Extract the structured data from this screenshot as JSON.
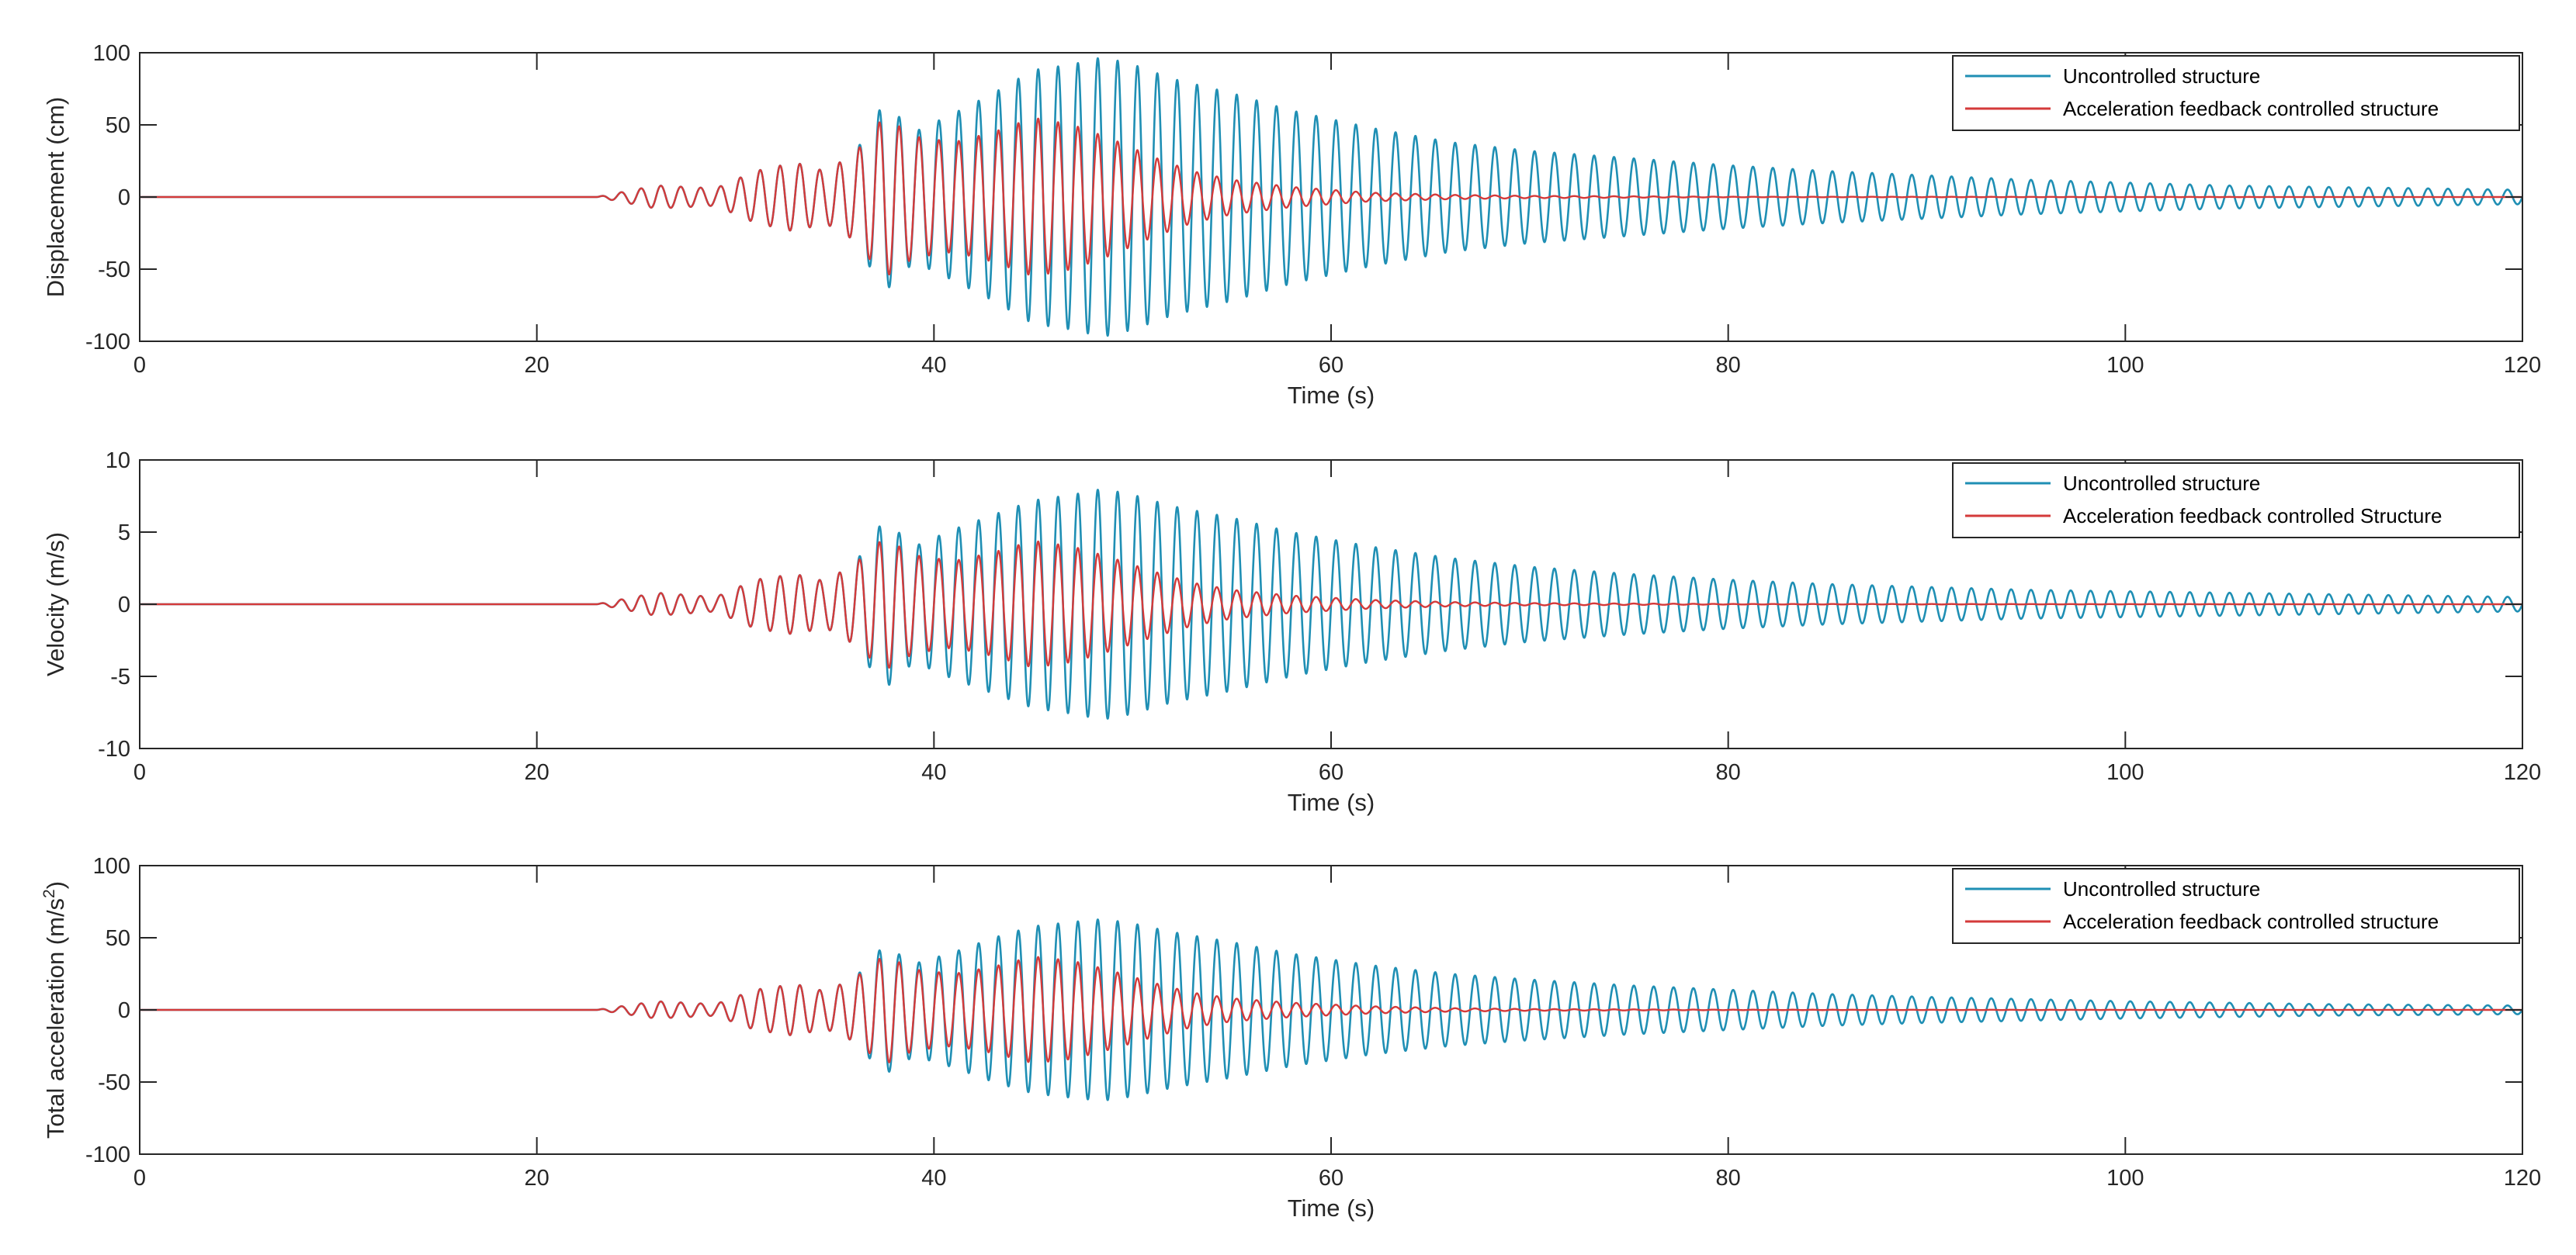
{
  "chart_data": [
    {
      "type": "line",
      "xlabel": "Time (s)",
      "ylabel": "Displacement (cm)",
      "xlim": [
        0,
        120
      ],
      "ylim": [
        -100,
        100
      ],
      "xticks": [
        0,
        20,
        40,
        60,
        80,
        100,
        120
      ],
      "yticks": [
        -100,
        -50,
        0,
        50,
        100
      ],
      "grid": false,
      "legend_position": "top-right",
      "series": [
        {
          "name": "Uncontrolled structure",
          "color": "#1f8fb4",
          "description": "oscillation starting near t=23 s, peak amplitude about 97 cm near t=48-49 s, decaying to about 5 cm at t=120 s",
          "envelope": {
            "t": [
              0,
              23,
              26,
              29,
              31,
              33,
              34.5,
              36,
              37.5,
              39,
              41,
              43,
              45,
              47,
              48.5,
              50,
              52,
              55,
              58,
              62,
              66,
              70,
              75,
              80,
              85,
              90,
              95,
              100,
              105,
              110,
              115,
              120
            ],
            "amplitude": [
              0,
              0,
              8,
              6,
              18,
              24,
              18,
              30,
              66,
              45,
              58,
              72,
              88,
              92,
              97,
              92,
              82,
              72,
              60,
              48,
              38,
              32,
              27,
              22,
              18,
              15,
              12,
              10,
              8,
              7,
              6,
              5
            ]
          }
        },
        {
          "name": "Acceleration feedback controlled structure",
          "color": "#d43a3a",
          "description": "follows uncontrolled response until about t=37 s, peak about 55 cm, then decays quickly to near zero after t=60 s",
          "envelope": {
            "t": [
              0,
              23,
              26,
              29,
              31,
              33,
              34.5,
              36,
              37.5,
              39,
              41,
              43,
              45,
              47,
              49,
              51,
              53,
              55,
              58,
              62,
              66,
              70,
              80,
              120
            ],
            "amplitude": [
              0,
              0,
              8,
              6,
              18,
              24,
              18,
              30,
              56,
              42,
              38,
              45,
              55,
              50,
              40,
              28,
              18,
              12,
              7,
              3,
              1.5,
              0.8,
              0.2,
              0
            ]
          }
        }
      ]
    },
    {
      "type": "line",
      "xlabel": "Time (s)",
      "ylabel": "Velocity (m/s)",
      "xlim": [
        0,
        120
      ],
      "ylim": [
        -10,
        10
      ],
      "xticks": [
        0,
        20,
        40,
        60,
        80,
        100,
        120
      ],
      "yticks": [
        -10,
        -5,
        0,
        5,
        10
      ],
      "grid": false,
      "legend_position": "top-right",
      "series": [
        {
          "name": "Uncontrolled structure",
          "color": "#1f8fb4",
          "description": "peak amplitude about 8 m/s near t=48-49 s, decaying to about 0.5 m/s at t=120 s",
          "envelope": {
            "t": [
              0,
              23,
              26,
              29,
              31,
              33,
              34.5,
              36,
              37.5,
              39,
              41,
              43,
              45,
              47,
              48.5,
              50,
              52,
              55,
              58,
              62,
              66,
              70,
              75,
              80,
              85,
              90,
              95,
              100,
              105,
              110,
              115,
              120
            ],
            "amplitude": [
              0,
              0,
              0.8,
              0.5,
              1.7,
              2.1,
              1.6,
              2.8,
              5.9,
              4.0,
              5.2,
              6.2,
              7.2,
              7.6,
              8.0,
              7.6,
              6.8,
              6.0,
              5.0,
              4.0,
              3.2,
              2.6,
              2.1,
              1.7,
              1.4,
              1.2,
              1.0,
              0.9,
              0.8,
              0.7,
              0.6,
              0.5
            ]
          }
        },
        {
          "name": "Acceleration feedback controlled Structure",
          "color": "#d43a3a",
          "description": "peak about 4.5 m/s, decays to near zero after t=60 s",
          "envelope": {
            "t": [
              0,
              23,
              26,
              29,
              31,
              33,
              34.5,
              36,
              37.5,
              39,
              41,
              43,
              45,
              47,
              49,
              51,
              53,
              55,
              58,
              62,
              66,
              70,
              80,
              120
            ],
            "amplitude": [
              0,
              0,
              0.8,
              0.5,
              1.7,
              2.1,
              1.6,
              2.8,
              4.6,
              3.4,
              3.0,
              3.6,
              4.4,
              4.0,
              3.2,
              2.3,
              1.5,
              1.0,
              0.6,
              0.3,
              0.15,
              0.08,
              0.02,
              0
            ]
          }
        }
      ]
    },
    {
      "type": "line",
      "xlabel": "Time (s)",
      "ylabel": "Total acceleration (m/s",
      "ylabel_superscript": "2",
      "ylabel_suffix": ")",
      "xlim": [
        0,
        120
      ],
      "ylim": [
        -100,
        100
      ],
      "xticks": [
        0,
        20,
        40,
        60,
        80,
        100,
        120
      ],
      "yticks": [
        -100,
        -50,
        0,
        50,
        100
      ],
      "grid": false,
      "legend_position": "top-right",
      "series": [
        {
          "name": "Uncontrolled structure",
          "color": "#1f8fb4",
          "description": "peak amplitude about 63 m/s2 near t=48-49 s, decaying to about 3 m/s2 at t=120 s",
          "envelope": {
            "t": [
              0,
              23,
              26,
              29,
              31,
              33,
              34.5,
              36,
              37.5,
              39,
              41,
              43,
              45,
              47,
              48.5,
              50,
              52,
              55,
              58,
              62,
              66,
              70,
              75,
              80,
              85,
              90,
              95,
              100,
              105,
              110,
              115,
              120
            ],
            "amplitude": [
              0,
              0,
              6,
              4,
              14,
              18,
              13,
              22,
              45,
              32,
              40,
              50,
              58,
              61,
              63,
              60,
              54,
              47,
              39,
              31,
              25,
              21,
              17,
              14,
              11,
              9,
              7.5,
              6,
              5,
              4,
              3.5,
              3
            ]
          }
        },
        {
          "name": "Acceleration feedback controlled structure",
          "color": "#d43a3a",
          "description": "peak about 38 m/s2, decays to near zero after t=60 s",
          "envelope": {
            "t": [
              0,
              23,
              26,
              29,
              31,
              33,
              34.5,
              36,
              37.5,
              39,
              41,
              43,
              45,
              47,
              49,
              51,
              53,
              55,
              58,
              62,
              66,
              70,
              80,
              120
            ],
            "amplitude": [
              0,
              0,
              6,
              4,
              14,
              18,
              13,
              22,
              38,
              28,
              25,
              30,
              37,
              34,
              27,
              19,
              12,
              8,
              5,
              2.5,
              1.2,
              0.6,
              0.15,
              0
            ]
          }
        }
      ]
    }
  ]
}
